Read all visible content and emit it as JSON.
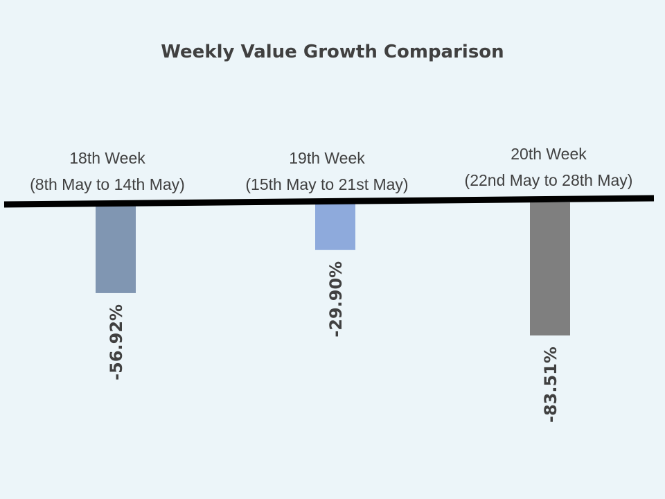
{
  "chart_data": {
    "type": "bar",
    "title": "Weekly Value Growth Comparison",
    "categories": [
      [
        "18th Week",
        "(8th May to 14th May)"
      ],
      [
        "19th Week",
        "(15th May to 21st May)"
      ],
      [
        "20th Week",
        "(22nd May to 28th May)"
      ]
    ],
    "values": [
      -56.92,
      -29.9,
      -83.51
    ],
    "data_labels": [
      "-56.92%",
      "-29.90%",
      "-83.51%"
    ],
    "colors": [
      "#8096B2",
      "#8EAADC",
      "#7F7F7F"
    ],
    "xlabel": "",
    "ylabel": "",
    "grid": false,
    "legend": "none"
  }
}
